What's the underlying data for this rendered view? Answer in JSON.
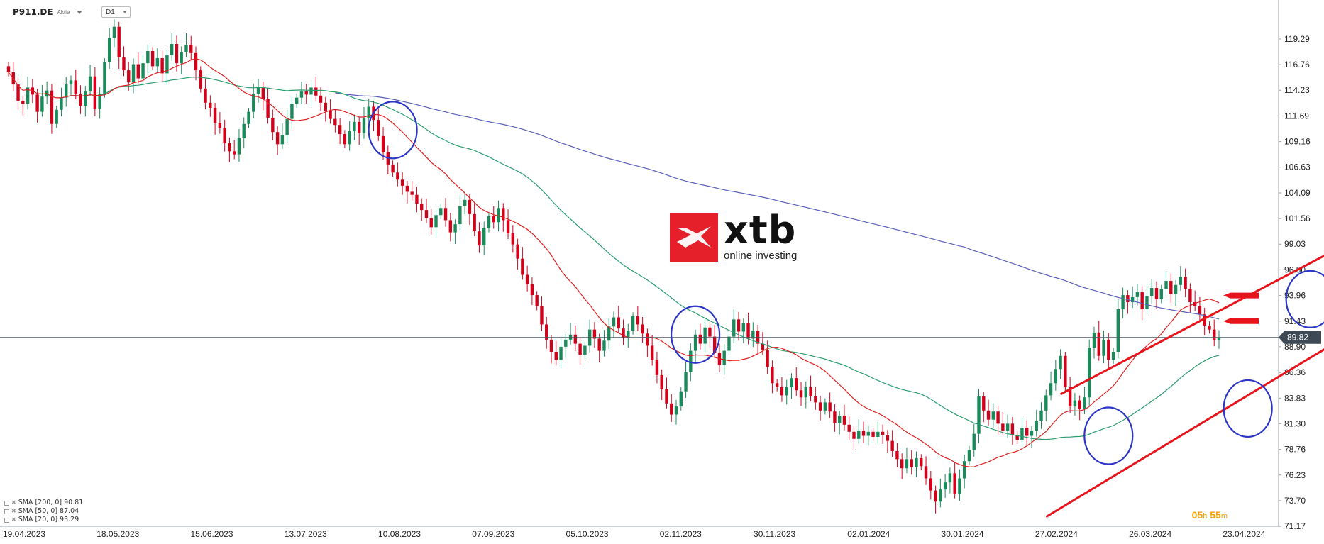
{
  "header": {
    "symbol": "P911.DE",
    "asset_type": "Aktie",
    "timeframe": "D1"
  },
  "logo": {
    "word": "xtb",
    "tagline": "online investing"
  },
  "legend": [
    {
      "label": "SMA",
      "params": "[200,  0]",
      "value": "90.81"
    },
    {
      "label": "SMA",
      "params": "[50,  0]",
      "value": "87.04"
    },
    {
      "label": "SMA",
      "params": "[20,  0]",
      "value": "93.29"
    }
  ],
  "countdown": {
    "hours": "05",
    "h": "h",
    "minutes": "55",
    "m": "m"
  },
  "colors": {
    "up": "#1b8a5a",
    "down": "#d0021b",
    "sma20": "#e02020",
    "sma50": "#2a9d6f",
    "sma200": "#5a60b8",
    "circle": "#2b35c8",
    "channel": "#e8141c",
    "price_line": "#4a5a66"
  },
  "chart_data": {
    "type": "candlestick",
    "symbol": "P911.DE",
    "ylim": [
      71.17,
      121.0
    ],
    "y_ticks": [
      "119.29",
      "116.76",
      "114.23",
      "111.69",
      "109.16",
      "106.63",
      "104.09",
      "101.56",
      "99.03",
      "96.50",
      "93.96",
      "91.43",
      "88.90",
      "86.36",
      "83.83",
      "81.30",
      "78.76",
      "76.23",
      "73.70",
      "71.17"
    ],
    "current_price": "89.82",
    "x_dates": [
      "19.04.2023",
      "18.05.2023",
      "15.06.2023",
      "13.07.2023",
      "10.08.2023",
      "07.09.2023",
      "05.10.2023",
      "02.11.2023",
      "30.11.2023",
      "02.01.2024",
      "30.01.2024",
      "27.02.2024",
      "26.03.2024",
      "23.04.2024"
    ],
    "closes": [
      116.0,
      114.8,
      113.2,
      112.9,
      114.5,
      113.8,
      112.1,
      113.6,
      114.2,
      110.9,
      112.3,
      113.5,
      114.8,
      115.2,
      113.9,
      112.7,
      114.1,
      115.6,
      112.4,
      113.9,
      117.0,
      119.4,
      120.5,
      117.5,
      116.2,
      115.0,
      116.8,
      115.4,
      116.9,
      118.1,
      116.6,
      117.4,
      115.9,
      117.7,
      118.8,
      116.9,
      118.0,
      118.7,
      117.9,
      116.2,
      114.4,
      113.0,
      112.5,
      111.0,
      110.5,
      109.0,
      108.2,
      107.9,
      109.5,
      110.9,
      112.1,
      113.9,
      114.6,
      113.4,
      111.5,
      110.1,
      108.9,
      109.8,
      111.4,
      112.9,
      113.5,
      114.1,
      113.8,
      114.5,
      113.7,
      113.0,
      112.2,
      111.4,
      110.8,
      109.9,
      108.9,
      110.2,
      111.1,
      110.0,
      111.5,
      112.6,
      111.3,
      109.7,
      108.1,
      106.9,
      106.1,
      105.4,
      104.8,
      104.2,
      103.9,
      103.0,
      102.4,
      101.6,
      100.7,
      101.9,
      102.6,
      101.4,
      100.2,
      101.0,
      102.8,
      103.4,
      102.0,
      100.3,
      98.9,
      100.6,
      101.8,
      101.2,
      102.6,
      101.4,
      100.1,
      99.0,
      97.6,
      96.0,
      95.1,
      94.0,
      92.9,
      91.1,
      89.6,
      88.4,
      87.6,
      88.9,
      89.6,
      90.1,
      89.2,
      88.1,
      89.0,
      90.6,
      89.7,
      88.5,
      89.5,
      90.9,
      91.8,
      90.7,
      89.8,
      90.5,
      91.9,
      91.1,
      90.2,
      89.0,
      87.6,
      86.1,
      84.7,
      83.3,
      82.2,
      83.0,
      84.5,
      86.4,
      88.5,
      90.1,
      89.2,
      90.8,
      89.9,
      88.3,
      87.1,
      88.5,
      89.9,
      91.6,
      90.4,
      91.2,
      89.7,
      90.5,
      89.2,
      88.6,
      86.9,
      85.3,
      84.9,
      84.1,
      84.9,
      85.8,
      84.6,
      83.9,
      84.9,
      84.0,
      83.4,
      82.6,
      83.4,
      82.5,
      81.4,
      82.1,
      81.2,
      80.5,
      79.8,
      80.6,
      80.1,
      80.5,
      80.0,
      80.5,
      80.2,
      79.6,
      78.6,
      77.8,
      76.9,
      77.8,
      77.0,
      77.9,
      77.1,
      75.9,
      74.7,
      73.6,
      74.8,
      75.5,
      76.4,
      74.4,
      75.9,
      77.6,
      78.7,
      80.3,
      84.0,
      82.6,
      81.7,
      82.5,
      81.3,
      80.6,
      81.3,
      80.2,
      79.7,
      80.9,
      80.1,
      80.6,
      81.6,
      82.6,
      84.1,
      85.3,
      86.7,
      88.0,
      84.9,
      83.0,
      83.6,
      82.8,
      83.9,
      88.8,
      90.3,
      88.0,
      89.6,
      87.6,
      88.4,
      92.6,
      94.0,
      93.3,
      93.8,
      94.3,
      92.6,
      93.9,
      94.7,
      93.6,
      94.6,
      95.4,
      94.1,
      95.0,
      95.8,
      94.6,
      93.3,
      92.9,
      92.1,
      91.0,
      90.6,
      89.6,
      89.8
    ],
    "volatility_note": "",
    "series": [
      {
        "key": "sma20",
        "window": 20
      },
      {
        "key": "sma50",
        "window": 50
      },
      {
        "key": "sma200",
        "window": 200,
        "start_index": 68
      }
    ],
    "circles": [
      {
        "index": 80,
        "price": 110.3
      },
      {
        "index": 143,
        "price": 90.1
      },
      {
        "index": 229,
        "price": 80.1
      },
      {
        "index": 258,
        "price": 82.8
      },
      {
        "index": 271,
        "price": 93.6
      },
      {
        "index": 283,
        "price": 90.3
      }
    ],
    "channel": [
      {
        "from": {
          "index": 219,
          "price": 84.2
        },
        "to": {
          "index": 290,
          "price": 101.9
        }
      },
      {
        "from": {
          "index": 216,
          "price": 72.1
        },
        "to": {
          "index": 293,
          "price": 94.1
        }
      }
    ],
    "markers": [
      {
        "index": 292,
        "price": 93.96
      },
      {
        "index": 292,
        "price": 91.43
      }
    ]
  }
}
